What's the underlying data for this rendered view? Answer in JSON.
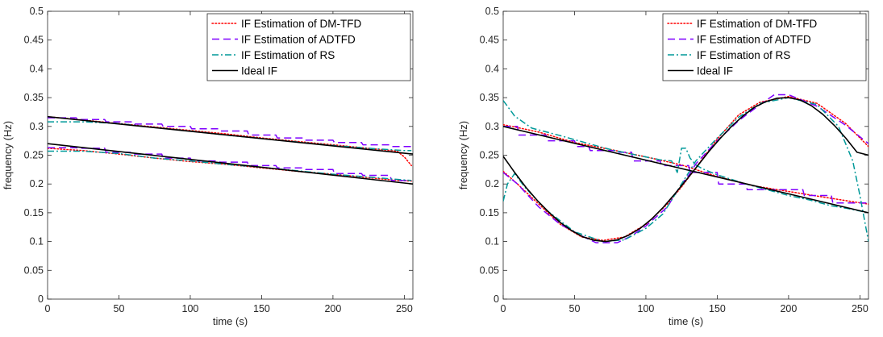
{
  "chart_data": [
    {
      "type": "line",
      "xlabel": "time (s)",
      "ylabel": "frequency (Hz)",
      "xlim": [
        0,
        256
      ],
      "ylim": [
        0,
        0.5
      ],
      "xticks": [
        "0",
        "50",
        "100",
        "150",
        "200",
        "250"
      ],
      "yticks": [
        "0",
        "0.05",
        "0.1",
        "0.15",
        "0.2",
        "0.25",
        "0.3",
        "0.35",
        "0.4",
        "0.45",
        "0.5"
      ],
      "legend_position": "top-right",
      "grid": false,
      "series": [
        {
          "name": "IF Estimation of DM-TFD",
          "color": "#ff0000",
          "style": "dotted",
          "components": [
            {
              "x": [
                0,
                25,
                50,
                75,
                100,
                125,
                150,
                175,
                200,
                225,
                245,
                250,
                255
              ],
              "y": [
                0.317,
                0.311,
                0.305,
                0.299,
                0.293,
                0.287,
                0.28,
                0.274,
                0.268,
                0.262,
                0.257,
                0.247,
                0.232
              ]
            },
            {
              "x": [
                0,
                25,
                50,
                75,
                100,
                125,
                150,
                175,
                200,
                225,
                245,
                255
              ],
              "y": [
                0.262,
                0.258,
                0.252,
                0.245,
                0.239,
                0.234,
                0.228,
                0.222,
                0.217,
                0.211,
                0.206,
                0.205
              ]
            }
          ]
        },
        {
          "name": "IF Estimation of ADTFD",
          "color": "#7f00ff",
          "style": "dashed",
          "components": [
            {
              "x": [
                0,
                20,
                21,
                40,
                41,
                60,
                61,
                80,
                81,
                100,
                101,
                120,
                121,
                140,
                141,
                160,
                161,
                180,
                181,
                200,
                201,
                220,
                221,
                240,
                241,
                255
              ],
              "y": [
                0.315,
                0.315,
                0.312,
                0.312,
                0.308,
                0.308,
                0.304,
                0.304,
                0.3,
                0.3,
                0.296,
                0.296,
                0.292,
                0.292,
                0.285,
                0.285,
                0.28,
                0.28,
                0.276,
                0.276,
                0.272,
                0.272,
                0.268,
                0.268,
                0.265,
                0.265
              ]
            },
            {
              "x": [
                0,
                20,
                21,
                40,
                41,
                60,
                61,
                80,
                81,
                100,
                101,
                120,
                121,
                140,
                141,
                160,
                161,
                180,
                181,
                200,
                201,
                220,
                221,
                240,
                241,
                255
              ],
              "y": [
                0.263,
                0.263,
                0.262,
                0.262,
                0.255,
                0.255,
                0.252,
                0.252,
                0.245,
                0.245,
                0.24,
                0.24,
                0.238,
                0.238,
                0.232,
                0.232,
                0.228,
                0.228,
                0.225,
                0.225,
                0.218,
                0.218,
                0.215,
                0.215,
                0.206,
                0.206
              ]
            }
          ]
        },
        {
          "name": "IF Estimation of RS",
          "color": "#009999",
          "style": "dashdot",
          "components": [
            {
              "x": [
                0,
                25,
                50,
                75,
                100,
                125,
                150,
                175,
                200,
                225,
                250,
                255
              ],
              "y": [
                0.308,
                0.308,
                0.305,
                0.298,
                0.292,
                0.285,
                0.279,
                0.273,
                0.267,
                0.262,
                0.258,
                0.258
              ]
            },
            {
              "x": [
                0,
                25,
                50,
                75,
                100,
                125,
                150,
                175,
                200,
                225,
                250,
                255
              ],
              "y": [
                0.257,
                0.257,
                0.253,
                0.245,
                0.24,
                0.234,
                0.229,
                0.223,
                0.217,
                0.212,
                0.207,
                0.206
              ]
            }
          ]
        },
        {
          "name": "Ideal IF",
          "color": "#000000",
          "style": "solid",
          "components": [
            {
              "x": [
                0,
                256
              ],
              "y": [
                0.317,
                0.252
              ]
            },
            {
              "x": [
                0,
                256
              ],
              "y": [
                0.27,
                0.2
              ]
            }
          ]
        }
      ]
    },
    {
      "type": "line",
      "xlabel": "time (s)",
      "ylabel": "frequency (Hz)",
      "xlim": [
        0,
        256
      ],
      "ylim": [
        0,
        0.5
      ],
      "xticks": [
        "0",
        "50",
        "100",
        "150",
        "200",
        "250"
      ],
      "yticks": [
        "0",
        "0.05",
        "0.1",
        "0.15",
        "0.2",
        "0.25",
        "0.3",
        "0.35",
        "0.4",
        "0.45",
        "0.5"
      ],
      "legend_position": "top-right",
      "grid": false,
      "series": [
        {
          "name": "IF Estimation of DM-TFD",
          "color": "#ff0000",
          "style": "dotted",
          "components": [
            {
              "x": [
                0,
                10,
                25,
                50,
                75,
                100,
                125,
                150,
                175,
                200,
                225,
                256
              ],
              "y": [
                0.303,
                0.298,
                0.29,
                0.272,
                0.26,
                0.247,
                0.233,
                0.213,
                0.197,
                0.187,
                0.177,
                0.165
              ]
            },
            {
              "x": [
                0,
                10,
                25,
                40,
                55,
                70,
                85,
                100,
                115,
                125,
                135,
                150,
                165,
                180,
                200,
                220,
                240,
                256
              ],
              "y": [
                0.222,
                0.2,
                0.165,
                0.13,
                0.108,
                0.102,
                0.108,
                0.13,
                0.165,
                0.195,
                0.228,
                0.278,
                0.32,
                0.342,
                0.352,
                0.34,
                0.305,
                0.265
              ]
            }
          ]
        },
        {
          "name": "IF Estimation of ADTFD",
          "color": "#7f00ff",
          "style": "dashed",
          "components": [
            {
              "x": [
                0,
                10,
                11,
                30,
                31,
                50,
                51,
                60,
                61,
                80,
                81,
                90,
                91,
                110,
                111,
                130,
                131,
                150,
                151,
                170,
                171,
                190,
                191,
                210,
                211,
                230,
                231,
                256
              ],
              "y": [
                0.3,
                0.3,
                0.285,
                0.285,
                0.275,
                0.275,
                0.265,
                0.265,
                0.258,
                0.258,
                0.255,
                0.255,
                0.24,
                0.24,
                0.232,
                0.232,
                0.22,
                0.22,
                0.2,
                0.2,
                0.19,
                0.19,
                0.19,
                0.19,
                0.18,
                0.18,
                0.167,
                0.167
              ]
            },
            {
              "x": [
                0,
                10,
                25,
                40,
                55,
                65,
                80,
                90,
                100,
                115,
                125,
                130,
                135,
                150,
                165,
                180,
                190,
                200,
                210,
                220,
                240,
                256
              ],
              "y": [
                0.22,
                0.2,
                0.16,
                0.13,
                0.11,
                0.098,
                0.098,
                0.11,
                0.127,
                0.16,
                0.2,
                0.215,
                0.235,
                0.275,
                0.31,
                0.338,
                0.355,
                0.355,
                0.345,
                0.335,
                0.302,
                0.27
              ]
            }
          ]
        },
        {
          "name": "IF Estimation of RS",
          "color": "#009999",
          "style": "dashdot",
          "components": [
            {
              "x": [
                0,
                3,
                8,
                20,
                40,
                60,
                75,
                90,
                110,
                118,
                122,
                125,
                128,
                131,
                135,
                140,
                150,
                160,
                170,
                185,
                200,
                215,
                230,
                240,
                248,
                252,
                256
              ],
              "y": [
                0.345,
                0.335,
                0.318,
                0.297,
                0.284,
                0.27,
                0.26,
                0.252,
                0.242,
                0.24,
                0.22,
                0.262,
                0.262,
                0.245,
                0.233,
                0.226,
                0.216,
                0.208,
                0.2,
                0.19,
                0.18,
                0.172,
                0.162,
                0.158,
                0.154,
                0.152,
                0.15
              ]
            },
            {
              "x": [
                0,
                3,
                8,
                15,
                30,
                50,
                70,
                85,
                100,
                112,
                120,
                125,
                135,
                150,
                165,
                180,
                200,
                220,
                235,
                245,
                250,
                256
              ],
              "y": [
                0.17,
                0.2,
                0.218,
                0.195,
                0.155,
                0.117,
                0.1,
                0.103,
                0.123,
                0.148,
                0.18,
                0.2,
                0.24,
                0.28,
                0.316,
                0.34,
                0.35,
                0.338,
                0.3,
                0.24,
                0.18,
                0.1
              ]
            }
          ]
        },
        {
          "name": "Ideal IF",
          "color": "#000000",
          "style": "solid",
          "components": [
            {
              "x": [
                0,
                256
              ],
              "y": [
                0.3,
                0.15
              ]
            },
            {
              "x": [
                0,
                8,
                16,
                24,
                32,
                40,
                48,
                56,
                64,
                72,
                80,
                88,
                96,
                104,
                112,
                120,
                128,
                136,
                144,
                152,
                160,
                168,
                176,
                184,
                192,
                200,
                208,
                216,
                224,
                232,
                240,
                248,
                256
              ],
              "y": [
                0.248,
                0.22,
                0.194,
                0.171,
                0.151,
                0.133,
                0.119,
                0.108,
                0.102,
                0.1,
                0.103,
                0.111,
                0.123,
                0.139,
                0.159,
                0.182,
                0.206,
                0.231,
                0.256,
                0.279,
                0.3,
                0.318,
                0.333,
                0.343,
                0.349,
                0.35,
                0.346,
                0.336,
                0.321,
                0.302,
                0.28,
                0.255,
                0.25
              ]
            }
          ]
        }
      ]
    }
  ]
}
